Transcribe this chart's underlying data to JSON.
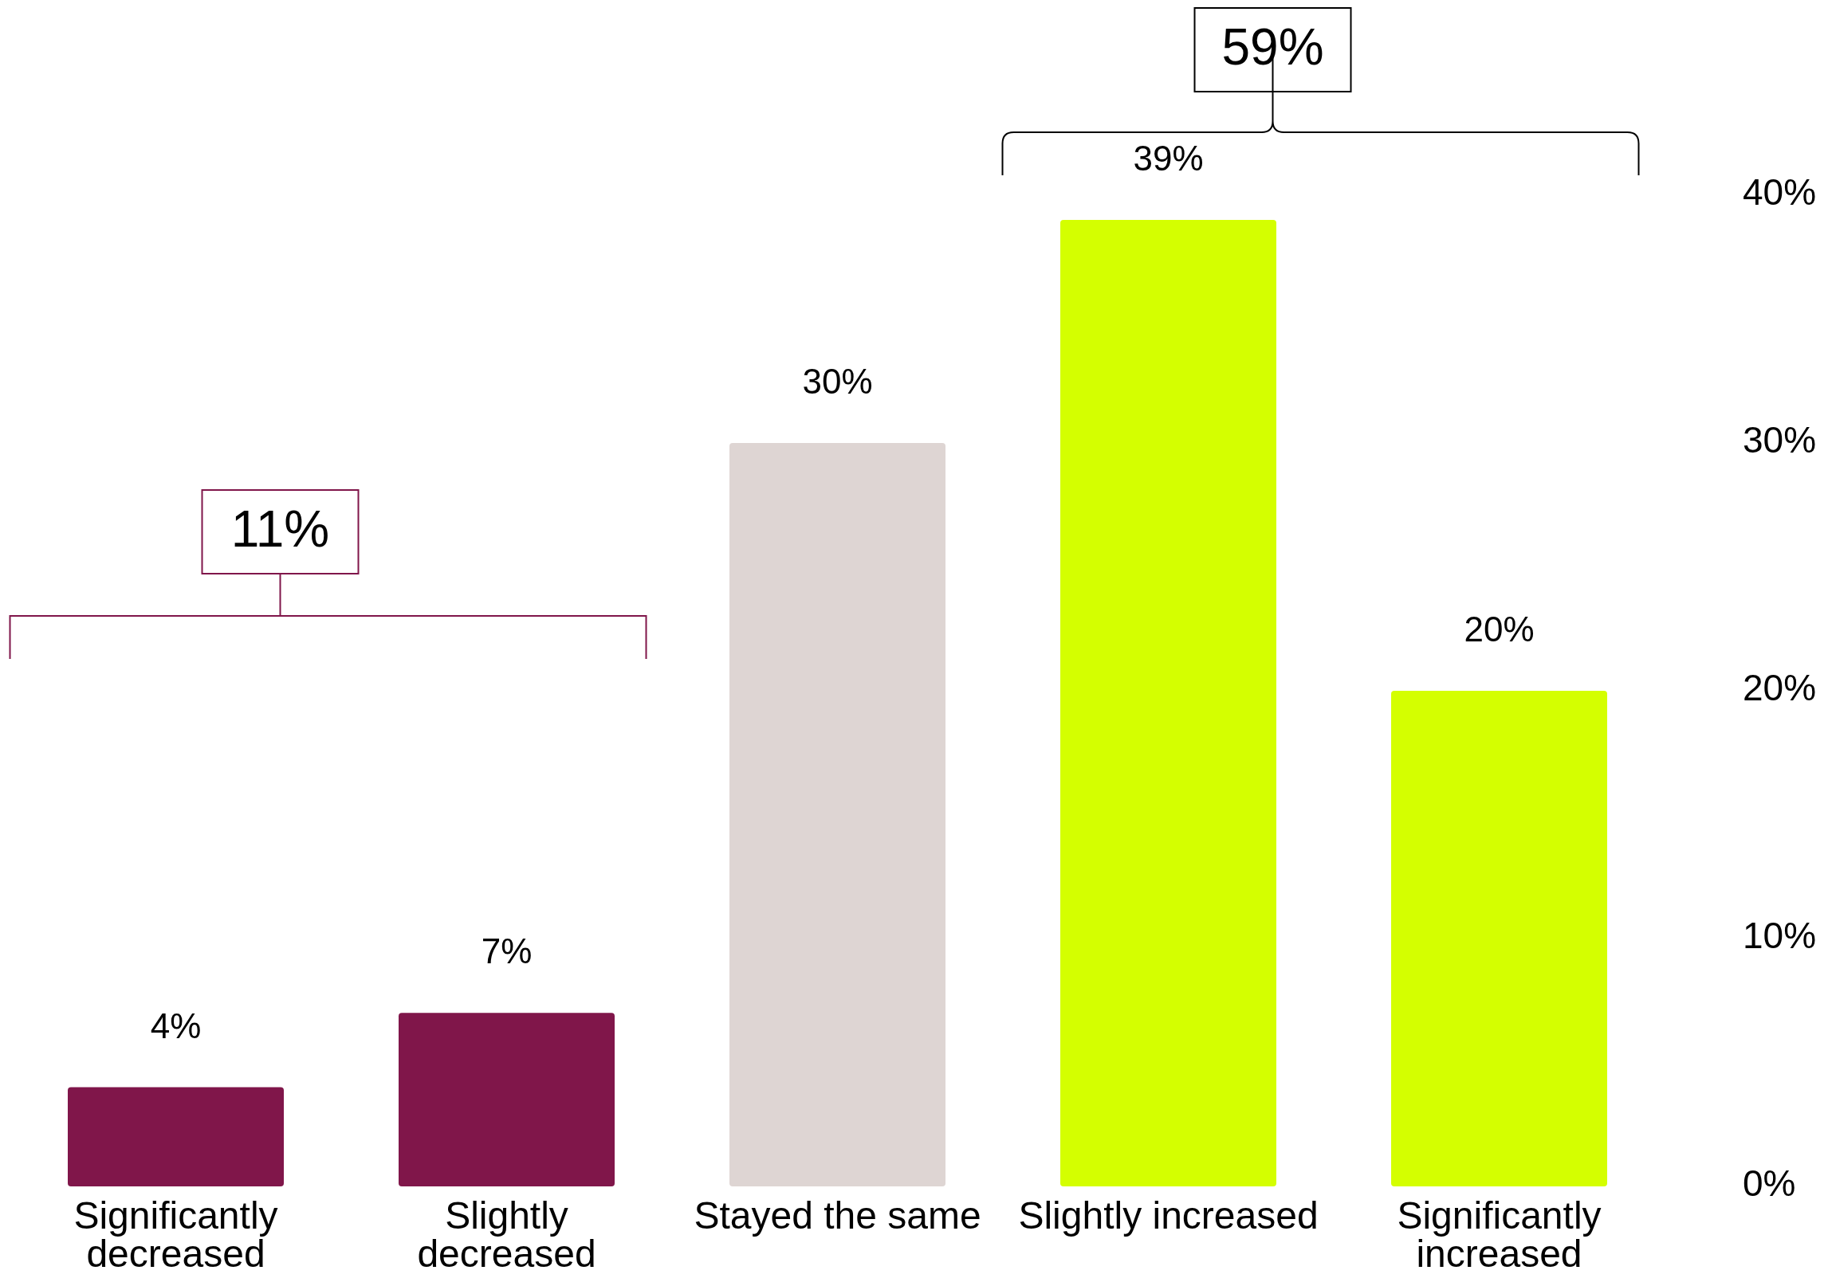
{
  "chart_data": {
    "type": "bar",
    "categories": [
      "Significantly\ndecreased",
      "Slightly\ndecreased",
      "Stayed the same",
      "Slightly increased",
      "Significantly\nincreased"
    ],
    "values": [
      4,
      7,
      30,
      39,
      20
    ],
    "colors": [
      "#80164a",
      "#80164a",
      "#ded5d3",
      "#d4ff00",
      "#d4ff00"
    ],
    "value_labels": [
      "4%",
      "7%",
      "30%",
      "39%",
      "20%"
    ],
    "ylim": [
      0,
      40
    ],
    "yticks": [
      {
        "value": 0,
        "label": "0%"
      },
      {
        "value": 10,
        "label": "10%"
      },
      {
        "value": 20,
        "label": "20%"
      },
      {
        "value": 30,
        "label": "30%"
      },
      {
        "value": 40,
        "label": "40%"
      }
    ],
    "grid": false,
    "annotations": [
      "11%",
      "59%"
    ]
  }
}
